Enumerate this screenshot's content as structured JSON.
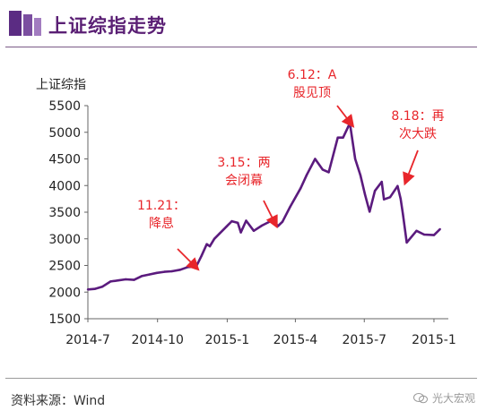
{
  "header": {
    "title": "上证综指走势",
    "accent_colors": [
      "#5b2c83",
      "#7b4fa0",
      "#a27cc0"
    ]
  },
  "chart_data": {
    "type": "line",
    "title": "上证综指走势",
    "ylabel": "上证综指",
    "xlabel": "",
    "ylim": [
      1500,
      5500
    ],
    "y_ticks": [
      1500,
      2000,
      2500,
      3000,
      3500,
      4000,
      4500,
      5000,
      5500
    ],
    "x_ticks": [
      "2014-7",
      "2014-10",
      "2015-1",
      "2015-4",
      "2015-7",
      "2015-1"
    ],
    "grid": false,
    "line_color": "#5b1b7e",
    "series": [
      {
        "x": [
          "2014-07-01",
          "2014-07-10",
          "2014-07-20",
          "2014-07-31",
          "2014-08-10",
          "2014-08-20",
          "2014-08-31",
          "2014-09-10",
          "2014-09-20",
          "2014-09-30",
          "2014-10-10",
          "2014-10-20",
          "2014-10-31",
          "2014-11-10",
          "2014-11-21",
          "2014-11-28",
          "2014-12-05",
          "2014-12-09",
          "2014-12-15",
          "2014-12-22",
          "2014-12-31",
          "2015-01-07",
          "2015-01-15",
          "2015-01-19",
          "2015-01-26",
          "2015-02-05",
          "2015-02-16",
          "2015-03-02",
          "2015-03-09",
          "2015-03-15",
          "2015-03-25",
          "2015-04-08",
          "2015-04-16",
          "2015-04-27",
          "2015-05-07",
          "2015-05-15",
          "2015-05-27",
          "2015-06-03",
          "2015-06-12",
          "2015-06-19",
          "2015-06-26",
          "2015-07-02",
          "2015-07-08",
          "2015-07-15",
          "2015-07-24",
          "2015-07-27",
          "2015-08-04",
          "2015-08-14",
          "2015-08-18",
          "2015-08-21",
          "2015-08-26",
          "2015-09-08",
          "2015-09-18",
          "2015-10-01",
          "2015-10-09"
        ],
        "y": [
          2050,
          2060,
          2100,
          2200,
          2220,
          2240,
          2230,
          2300,
          2330,
          2360,
          2380,
          2390,
          2420,
          2470,
          2480,
          2680,
          2900,
          2860,
          3000,
          3100,
          3230,
          3330,
          3300,
          3120,
          3340,
          3150,
          3250,
          3350,
          3240,
          3320,
          3600,
          3950,
          4200,
          4500,
          4300,
          4250,
          4900,
          4900,
          5170,
          4500,
          4190,
          3830,
          3510,
          3900,
          4070,
          3740,
          3780,
          3990,
          3750,
          3470,
          2930,
          3150,
          3080,
          3070,
          3180
        ]
      }
    ],
    "annotations": [
      {
        "date": "2014-11-21",
        "label_line1": "11.21：",
        "label_line2": "降息"
      },
      {
        "date": "2015-03-15",
        "label_line1": "3.15：两",
        "label_line2": "会闭幕"
      },
      {
        "date": "2015-06-12",
        "label_line1": "6.12：A",
        "label_line2": "股见顶"
      },
      {
        "date": "2015-08-18",
        "label_line1": "8.18：再",
        "label_line2": "次大跌"
      }
    ],
    "annotation_color": "#e8262b"
  },
  "footer": {
    "source": "资料来源：Wind",
    "watermark": "光大宏观"
  }
}
